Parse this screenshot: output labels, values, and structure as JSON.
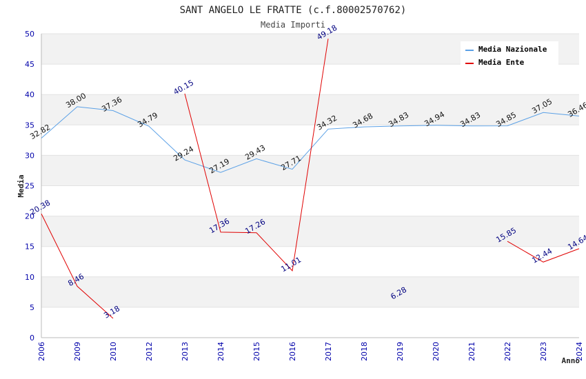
{
  "chart_data": {
    "type": "line",
    "title": "SANT ANGELO LE FRATTE (c.f.80002570762)",
    "subtitle": "Media Importi",
    "xlabel": "Anno",
    "ylabel": "Media",
    "ylim": [
      0,
      50
    ],
    "yticks": [
      "0",
      "5",
      "10",
      "15",
      "20",
      "25",
      "30",
      "35",
      "40",
      "45",
      "50"
    ],
    "categories": [
      "2006",
      "2009",
      "2010",
      "2012",
      "2013",
      "2014",
      "2015",
      "2016",
      "2017",
      "2018",
      "2019",
      "2020",
      "2021",
      "2022",
      "2023",
      "2024"
    ],
    "legend_position": "top-right",
    "grid": true,
    "series": [
      {
        "name": "Media Nazionale",
        "color": "#5aa0e6",
        "values": [
          32.82,
          38.0,
          37.36,
          34.79,
          29.24,
          27.19,
          29.43,
          27.71,
          34.32,
          34.68,
          34.83,
          34.94,
          34.83,
          34.85,
          37.05,
          36.46
        ],
        "labels": [
          "32.82",
          "38.00",
          "37.36",
          "34.79",
          "29.24",
          "27.19",
          "29.43",
          "27.71",
          "34.32",
          "34.68",
          "34.83",
          "34.94",
          "34.83",
          "34.85",
          "37.05",
          "36.46"
        ]
      },
      {
        "name": "Media Ente",
        "color": "#e00000",
        "values": [
          20.38,
          8.46,
          3.18,
          null,
          40.15,
          17.36,
          17.26,
          11.01,
          49.18,
          null,
          6.28,
          null,
          null,
          15.85,
          12.44,
          14.64
        ],
        "labels": [
          "20.38",
          "8.46",
          "3.18",
          null,
          "40.15",
          "17.36",
          "17.26",
          "11.01",
          "49.18",
          null,
          "6.28",
          null,
          null,
          "15.85",
          "12.44",
          "14.64"
        ]
      }
    ]
  }
}
